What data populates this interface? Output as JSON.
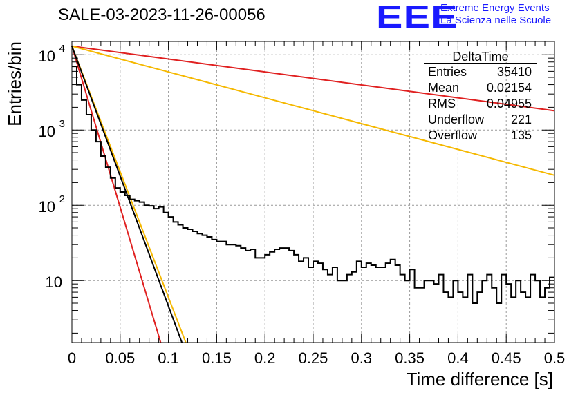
{
  "title": "SALE-03-2023-11-26-00056",
  "logo": {
    "mark": "EEE",
    "line1": "Extreme Energy Events",
    "line2": "La Scienza nelle Scuole",
    "color": "#1a1aff"
  },
  "chart_data": {
    "type": "line",
    "xlabel": "Time difference [s]",
    "ylabel": "Entries/bin",
    "xlim": [
      0,
      0.5
    ],
    "ylim": [
      1.5,
      15000
    ],
    "yscale": "log",
    "grid": true,
    "x_ticks": [
      "0",
      "0.05",
      "0.1",
      "0.15",
      "0.2",
      "0.25",
      "0.3",
      "0.35",
      "0.4",
      "0.45",
      "0.5"
    ],
    "y_ticks": [
      {
        "base": "10",
        "exp": "4",
        "value": 10000
      },
      {
        "base": "10",
        "exp": "3",
        "value": 1000
      },
      {
        "base": "10",
        "exp": "2",
        "value": 100
      },
      {
        "base": "10",
        "exp": "",
        "value": 10
      }
    ],
    "stats_box": {
      "name": "DeltaTime",
      "rows": [
        {
          "label": "Entries",
          "value": "35410"
        },
        {
          "label": "Mean",
          "value": "0.02154"
        },
        {
          "label": "RMS",
          "value": "0.04955"
        },
        {
          "label": "Underflow",
          "value": "221"
        },
        {
          "label": "Overflow",
          "value": "135"
        }
      ]
    },
    "histogram": {
      "color": "#000000",
      "bin_width": 0.005,
      "values": [
        7000,
        4000,
        2500,
        1600,
        1000,
        700,
        450,
        320,
        230,
        170,
        150,
        135,
        120,
        115,
        110,
        100,
        98,
        90,
        95,
        80,
        70,
        60,
        55,
        50,
        48,
        45,
        42,
        40,
        38,
        35,
        33,
        33,
        30,
        30,
        29,
        27,
        25,
        26,
        20,
        20,
        22,
        24,
        26,
        27,
        27,
        25,
        22,
        18,
        20,
        15,
        18,
        17,
        14,
        12,
        15,
        10,
        10,
        12,
        13,
        18,
        15,
        17,
        16,
        15,
        15,
        17,
        19,
        16,
        12,
        10,
        14,
        8,
        8,
        10,
        10,
        9,
        12,
        7,
        6,
        10,
        7,
        6,
        12,
        5,
        7,
        10,
        12,
        8,
        5,
        12,
        9,
        6,
        10,
        7,
        6,
        12,
        10,
        6,
        8,
        11
      ]
    },
    "fit_curves": [
      {
        "color": "#e02020",
        "points": [
          [
            0,
            13000
          ],
          [
            0.5,
            1800
          ]
        ]
      },
      {
        "color": "#f5b800",
        "points": [
          [
            0,
            13000
          ],
          [
            0.5,
            250
          ]
        ]
      },
      {
        "color": "#e02020",
        "points": [
          [
            0,
            13000
          ],
          [
            0.092,
            1.5
          ]
        ]
      },
      {
        "color": "#f5b800",
        "points": [
          [
            0,
            13000
          ],
          [
            0.118,
            1.5
          ]
        ]
      },
      {
        "color": "#000000",
        "points": [
          [
            0,
            13000
          ],
          [
            0.114,
            1.5
          ]
        ]
      }
    ]
  }
}
